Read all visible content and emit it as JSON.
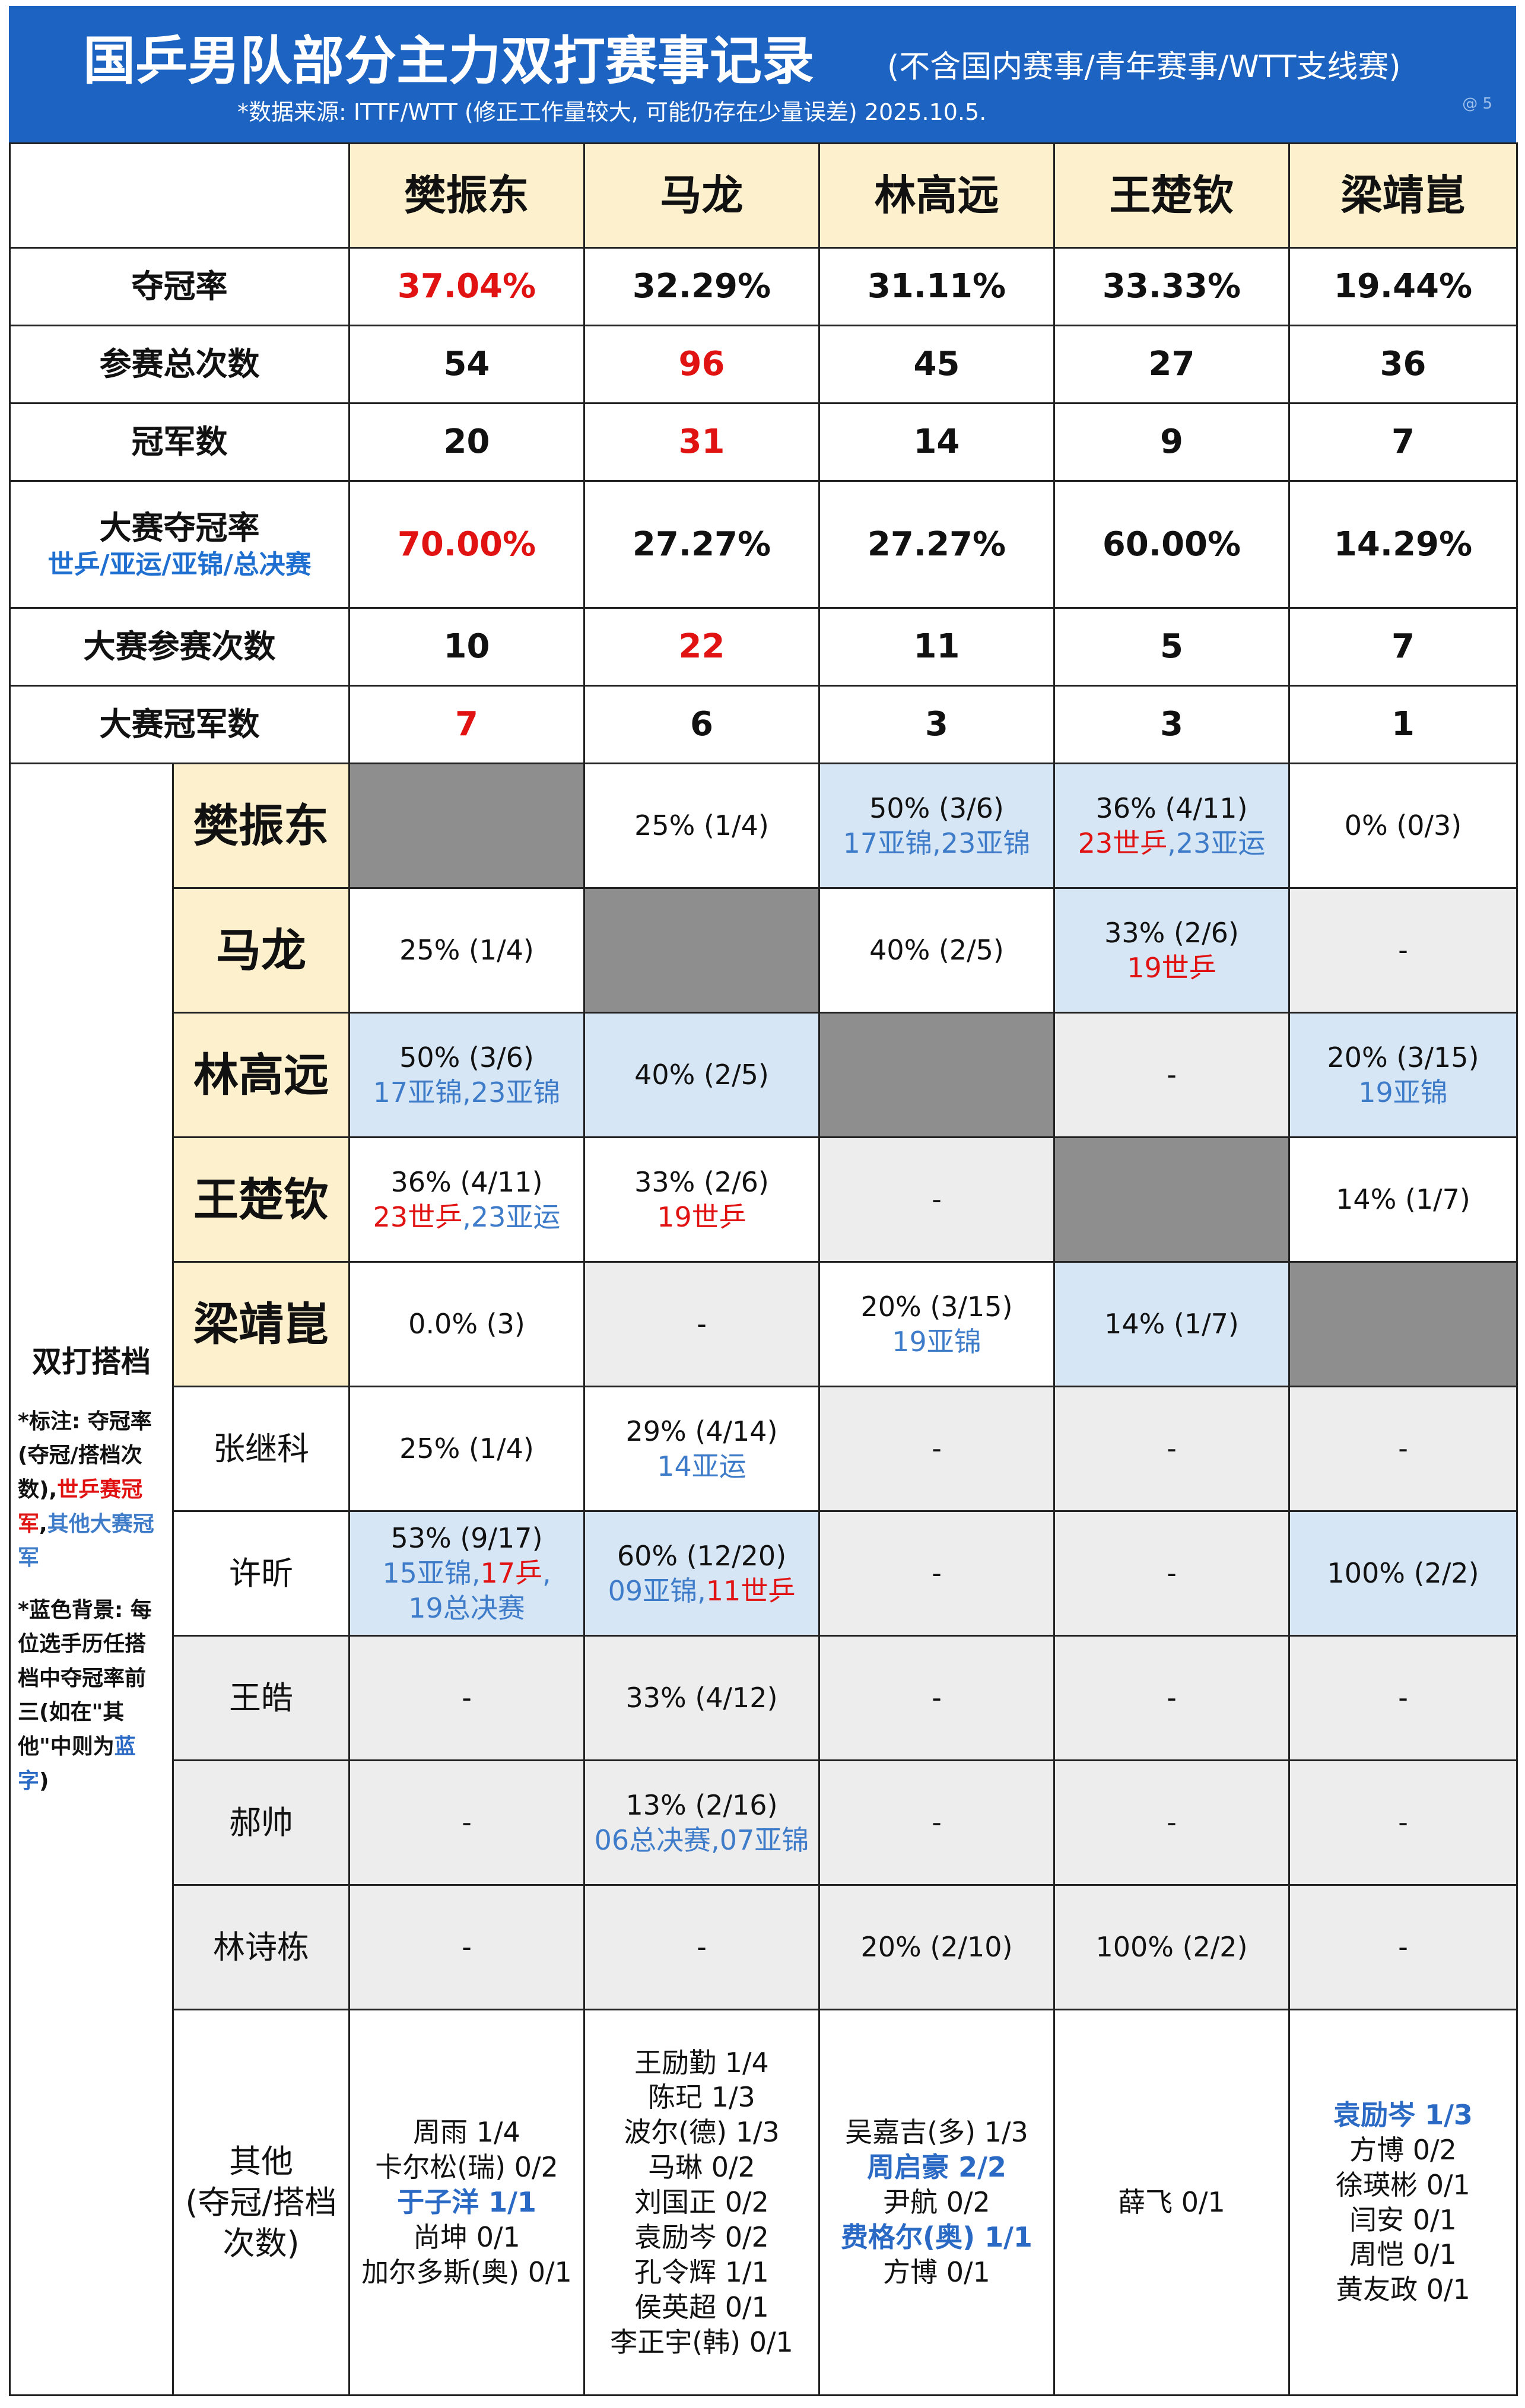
{
  "header": {
    "title": "国乒男队部分主力双打赛事记录",
    "title_sub": "(不含国内赛事/青年赛事/WTT支线赛)",
    "source": "*数据来源: ITTF/WTT (修正工作量较大, 可能仍存在少量误差) 2025.10.5.",
    "watermark": "@                    5"
  },
  "players": [
    "樊振东",
    "马龙",
    "林高远",
    "王楚钦",
    "梁靖崑"
  ],
  "stats": [
    {
      "label": "夺冠率",
      "values": [
        "37.04%",
        "32.29%",
        "31.11%",
        "33.33%",
        "19.44%"
      ]
    },
    {
      "label": "参赛总次数",
      "values": [
        "54",
        "96",
        "45",
        "27",
        "36"
      ]
    },
    {
      "label": "冠军数",
      "values": [
        "20",
        "31",
        "14",
        "9",
        "7"
      ]
    },
    {
      "label": "大赛夺冠率",
      "sub": "世乒/亚运/亚锦/总决赛",
      "values": [
        "70.00%",
        "27.27%",
        "27.27%",
        "60.00%",
        "14.29%"
      ]
    },
    {
      "label": "大赛参赛次数",
      "values": [
        "10",
        "22",
        "11",
        "5",
        "7"
      ]
    },
    {
      "label": "大赛冠军数",
      "values": [
        "7",
        "6",
        "3",
        "3",
        "1"
      ]
    }
  ],
  "notes": {
    "title": "双打搭档",
    "note1_a": "*标注: 夺冠率 (夺冠/搭档次数),",
    "note1_b": "世乒赛冠军",
    "note1_c": ",",
    "note1_d": "其他大赛冠军",
    "note2_a": "*蓝色背景: 每位选手历任搭档中夺冠率前三(如在\"其他\"中则为",
    "note2_b": "蓝字",
    "note2_c": ")"
  },
  "partners": {
    "fzd_ml": "25% (1/4)",
    "fzd_lgy": "50% (3/6)",
    "fzd_lgy_n": "17亚锦,23亚锦",
    "fzd_wcq": "36% (4/11)",
    "fzd_wcq_r": "23世乒",
    "fzd_wcq_c": ",",
    "fzd_wcq_b": "23亚运",
    "fzd_ljk": "0% (0/3)",
    "ml_fzd": "25% (1/4)",
    "ml_lgy": "40% (2/5)",
    "ml_wcq": "33% (2/6)",
    "ml_wcq_r": "19世乒",
    "ml_ljk": "-",
    "lgy_fzd": "50% (3/6)",
    "lgy_fzd_n": "17亚锦,23亚锦",
    "lgy_ml": "40% (2/5)",
    "lgy_wcq": "-",
    "lgy_ljk": "20% (3/15)",
    "lgy_ljk_n": "19亚锦",
    "wcq_fzd": "36% (4/11)",
    "wcq_fzd_r": "23世乒",
    "wcq_fzd_c": ",",
    "wcq_fzd_b": "23亚运",
    "wcq_ml": "33% (2/6)",
    "wcq_ml_r": "19世乒",
    "wcq_lgy": "-",
    "wcq_ljk": "14% (1/7)",
    "ljk_fzd": "0.0% (3)",
    "ljk_ml": "-",
    "ljk_lgy": "20% (3/15)",
    "ljk_lgy_n": "19亚锦",
    "ljk_wcq": "14% (1/7)"
  },
  "others_rows": [
    {
      "name": "张继科",
      "c1": "25% (1/4)",
      "c2": "29% (4/14)",
      "c2n": "14亚运",
      "c3": "-",
      "c4": "-",
      "c5": "-"
    },
    {
      "name": "许昕",
      "c1": "53% (9/17)",
      "c1n_a": "15亚锦,",
      "c1n_b": "17乒",
      "c1n_c": ",",
      "c1n_d": "19总决赛",
      "c2": "60% (12/20)",
      "c2n_a": "09亚锦,",
      "c2n_b": "11世乒",
      "c3": "-",
      "c4": "-",
      "c5": "100% (2/2)"
    },
    {
      "name": "王皓",
      "c1": "-",
      "c2": "33% (4/12)",
      "c3": "-",
      "c4": "-",
      "c5": "-"
    },
    {
      "name": "郝帅",
      "c1": "-",
      "c2": "13% (2/16)",
      "c2n": "06总决赛,07亚锦",
      "c3": "-",
      "c4": "-",
      "c5": "-"
    },
    {
      "name": "林诗栋",
      "c1": "-",
      "c2": "-",
      "c3": "20% (2/10)",
      "c4": "100% (2/2)",
      "c5": "-"
    }
  ],
  "misc": {
    "name1": "其他",
    "name2": "(夺冠/搭档",
    "name3": "次数)",
    "c1": [
      "周雨 1/4",
      "卡尔松(瑞) 0/2",
      "于子洋 1/1",
      "尚坤 0/1",
      "加尔多斯(奥) 0/1"
    ],
    "c2": [
      "王励勤 1/4",
      "陈玘 1/3",
      "波尔(德) 1/3",
      "马琳 0/2",
      "刘国正 0/2",
      "袁励岑 0/2",
      "孔令辉 1/1",
      "侯英超 0/1",
      "李正宇(韩) 0/1"
    ],
    "c3": [
      "吴嘉吉(多) 1/3",
      "周启豪 2/2",
      "尹航 0/2",
      "费格尔(奥) 1/1",
      "方博 0/1"
    ],
    "c4": [
      "薛飞 0/1"
    ],
    "c5": [
      "袁励岑 1/3",
      "方博 0/2",
      "徐瑛彬 0/1",
      "闫安 0/1",
      "周恺 0/1",
      "黄友政 0/1"
    ]
  },
  "colors": {
    "header_bg": "#1c63c2",
    "name_bg": "#fdf0cc",
    "highlight_bg": "#d6e6f5",
    "red": "#e01212",
    "blue": "#3e7cc9"
  }
}
